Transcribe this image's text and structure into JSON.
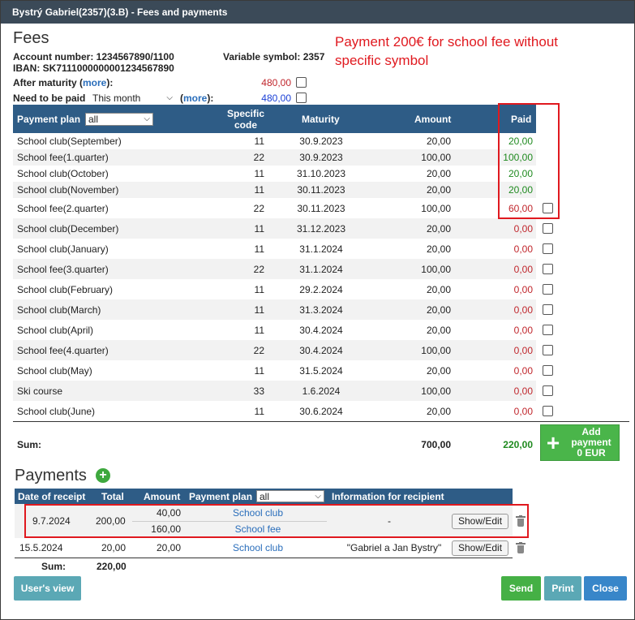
{
  "window": {
    "title": "Bystrý Gabriel(2357)(3.B) - Fees and payments"
  },
  "fees": {
    "title": "Fees",
    "account_number": "Account number: 1234567890/1100",
    "iban": "IBAN: SK7111000000001234567890",
    "variable_symbol": "Variable symbol: 2357",
    "after_maturity_label": "After maturity (",
    "after_maturity_more": "more",
    "after_maturity_suffix": "):",
    "after_maturity_value": "480,00",
    "need_to_be_paid_label": "Need to be paid",
    "need_to_be_paid_select": "This month",
    "need_more": "more",
    "need_value": "480,00",
    "headers": {
      "payment_plan": "Payment plan",
      "payment_plan_select": "all",
      "specific_code_1": "Specific",
      "specific_code_2": "code",
      "maturity": "Maturity",
      "amount": "Amount",
      "paid": "Paid"
    },
    "rows": [
      {
        "name": "School club(September)",
        "code": "11",
        "maturity": "30.9.2023",
        "amount": "20,00",
        "paid": "20,00",
        "status": "paid"
      },
      {
        "name": "School fee(1.quarter)",
        "code": "22",
        "maturity": "30.9.2023",
        "amount": "100,00",
        "paid": "100,00",
        "status": "paid"
      },
      {
        "name": "School club(October)",
        "code": "11",
        "maturity": "31.10.2023",
        "amount": "20,00",
        "paid": "20,00",
        "status": "paid"
      },
      {
        "name": "School club(November)",
        "code": "11",
        "maturity": "30.11.2023",
        "amount": "20,00",
        "paid": "20,00",
        "status": "paid"
      },
      {
        "name": "School fee(2.quarter)",
        "code": "22",
        "maturity": "30.11.2023",
        "amount": "100,00",
        "paid": "60,00",
        "status": "partial"
      },
      {
        "name": "School club(December)",
        "code": "11",
        "maturity": "31.12.2023",
        "amount": "20,00",
        "paid": "0,00",
        "status": "unpaid"
      },
      {
        "name": "School club(January)",
        "code": "11",
        "maturity": "31.1.2024",
        "amount": "20,00",
        "paid": "0,00",
        "status": "unpaid"
      },
      {
        "name": "School fee(3.quarter)",
        "code": "22",
        "maturity": "31.1.2024",
        "amount": "100,00",
        "paid": "0,00",
        "status": "unpaid"
      },
      {
        "name": "School club(February)",
        "code": "11",
        "maturity": "29.2.2024",
        "amount": "20,00",
        "paid": "0,00",
        "status": "unpaid"
      },
      {
        "name": "School club(March)",
        "code": "11",
        "maturity": "31.3.2024",
        "amount": "20,00",
        "paid": "0,00",
        "status": "unpaid"
      },
      {
        "name": "School club(April)",
        "code": "11",
        "maturity": "30.4.2024",
        "amount": "20,00",
        "paid": "0,00",
        "status": "unpaid"
      },
      {
        "name": "School fee(4.quarter)",
        "code": "22",
        "maturity": "30.4.2024",
        "amount": "100,00",
        "paid": "0,00",
        "status": "unpaid"
      },
      {
        "name": "School club(May)",
        "code": "11",
        "maturity": "31.5.2024",
        "amount": "20,00",
        "paid": "0,00",
        "status": "unpaid"
      },
      {
        "name": "Ski course",
        "code": "33",
        "maturity": "1.6.2024",
        "amount": "100,00",
        "paid": "0,00",
        "status": "unpaid"
      },
      {
        "name": "School club(June)",
        "code": "11",
        "maturity": "30.6.2024",
        "amount": "20,00",
        "paid": "0,00",
        "status": "unpaid"
      }
    ],
    "sum_label": "Sum:",
    "sum_amount": "700,00",
    "sum_paid": "220,00",
    "add_payment": {
      "line1": "Add",
      "line2": "payment",
      "line3": "0 EUR"
    }
  },
  "annotation": {
    "line1": "Payment 200€ for school fee without",
    "line2": "specific symbol"
  },
  "payments": {
    "title": "Payments",
    "headers": {
      "date": "Date of receipt",
      "total": "Total",
      "amount": "Amount",
      "plan": "Payment plan",
      "plan_select": "all",
      "info": "Information for recipient"
    },
    "rows": [
      {
        "date": "9.7.2024",
        "total": "200,00",
        "splits": [
          {
            "amount": "40,00",
            "plan": "School club"
          },
          {
            "amount": "160,00",
            "plan": "School fee"
          }
        ],
        "info": "-",
        "button": "Show/Edit"
      },
      {
        "date": "15.5.2024",
        "total": "20,00",
        "splits": [
          {
            "amount": "20,00",
            "plan": "School club"
          }
        ],
        "info": "\"Gabriel a Jan Bystry\"",
        "button": "Show/Edit"
      }
    ],
    "sum_label": "Sum:",
    "sum_total": "220,00"
  },
  "footer": {
    "users_view": "User's view",
    "send": "Send",
    "print": "Print",
    "close": "Close"
  },
  "colors": {
    "header_bg": "#2e5c86",
    "paid_green": "#1f8a1f",
    "unpaid_red": "#c0262c",
    "annotation_red": "#e0191f"
  }
}
